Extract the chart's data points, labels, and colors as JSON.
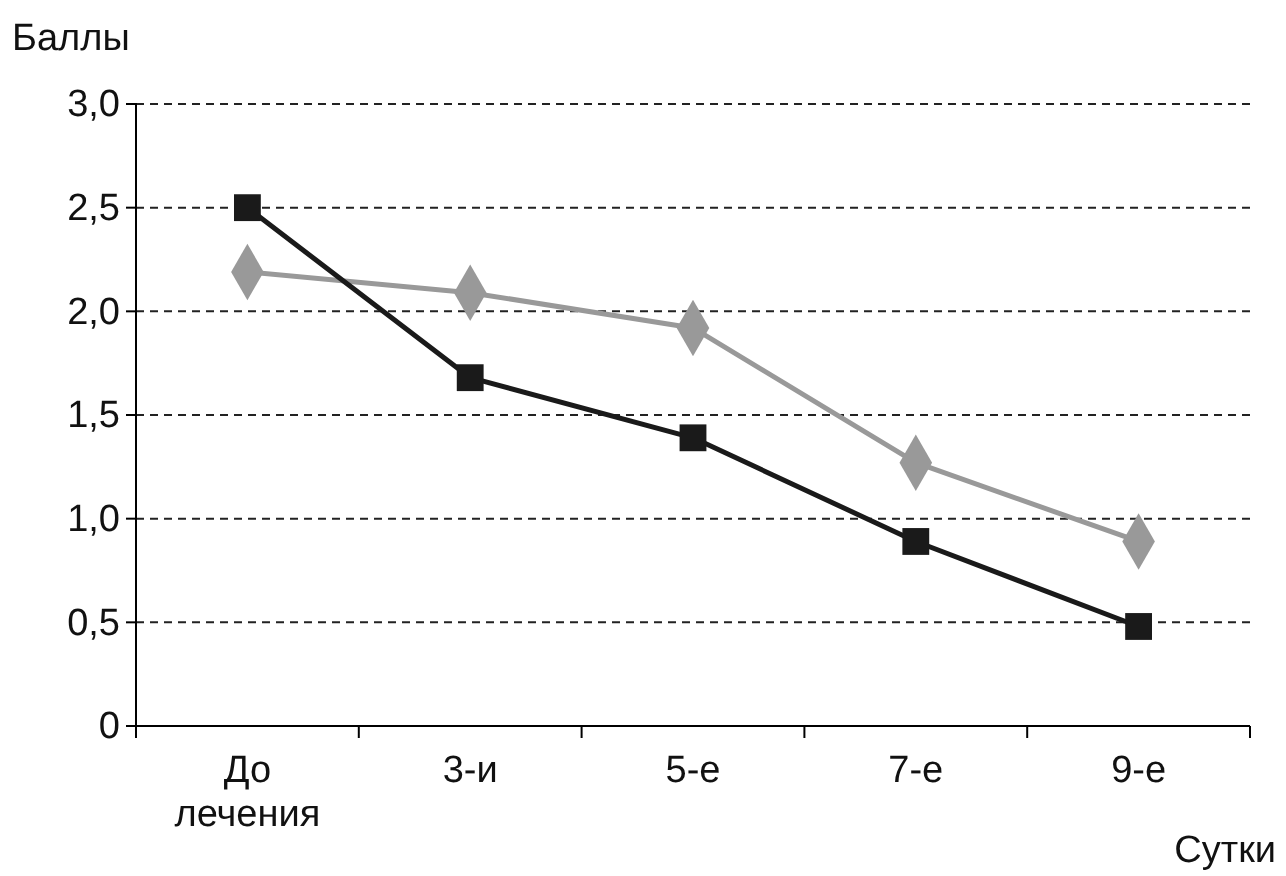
{
  "chart_data": {
    "type": "line",
    "xlabel": "Сутки",
    "ylabel": "Баллы",
    "categories": [
      "До лечения",
      "3-и",
      "5-е",
      "7-е",
      "9-е"
    ],
    "series": [
      {
        "color": "#999999",
        "marker": "diamond",
        "values": [
          2.19,
          2.09,
          1.92,
          1.27,
          0.89
        ]
      },
      {
        "color": "#1a1a1a",
        "marker": "square",
        "values": [
          2.5,
          1.68,
          1.39,
          0.89,
          0.48
        ]
      }
    ],
    "ylim": [
      0,
      3
    ],
    "yticks": [
      0,
      {
        "value": 0.5,
        "label": "0,5"
      },
      {
        "value": 1,
        "label": "1,0"
      },
      {
        "value": 1.5,
        "label": "1,5"
      },
      {
        "value": 2,
        "label": "2,0"
      },
      {
        "value": 2.5,
        "label": "2,5"
      },
      {
        "value": 3,
        "label": "3,0"
      }
    ],
    "grid": "y",
    "line_style": "solid"
  }
}
